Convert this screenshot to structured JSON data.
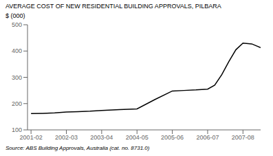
{
  "chart_data": {
    "type": "line",
    "title": "AVERAGE COST OF NEW RESIDENTIAL BUILDING APPROVALS, PILBARA",
    "ylabel": "$ (000)",
    "source": "Source: ABS Building Approvals, Australia (cat. no. 8731.0)",
    "x": [
      0,
      0.33,
      0.67,
      1.0,
      1.33,
      1.67,
      2.0,
      2.5,
      3.0,
      3.5,
      4.0,
      4.33,
      4.67,
      5.0,
      5.2,
      5.4,
      5.6,
      5.8,
      6.0,
      6.25,
      6.5
    ],
    "values": [
      162,
      163,
      165,
      168,
      169,
      171,
      174,
      177,
      180,
      215,
      248,
      250,
      252,
      255,
      270,
      310,
      360,
      405,
      430,
      427,
      413
    ],
    "color": "#000000",
    "xlim": [
      -0.1,
      6.5
    ],
    "xticks": [
      {
        "value": 0,
        "label": "2001-02"
      },
      {
        "value": 1,
        "label": "2002-03"
      },
      {
        "value": 2,
        "label": "2003-04"
      },
      {
        "value": 3,
        "label": "2004-05"
      },
      {
        "value": 4,
        "label": "2005-06"
      },
      {
        "value": 5,
        "label": "2006-07"
      },
      {
        "value": 6,
        "label": "2007-08"
      }
    ],
    "ylim": [
      100,
      500
    ],
    "yticks": [
      100,
      200,
      300,
      400,
      500
    ],
    "grid": false
  }
}
